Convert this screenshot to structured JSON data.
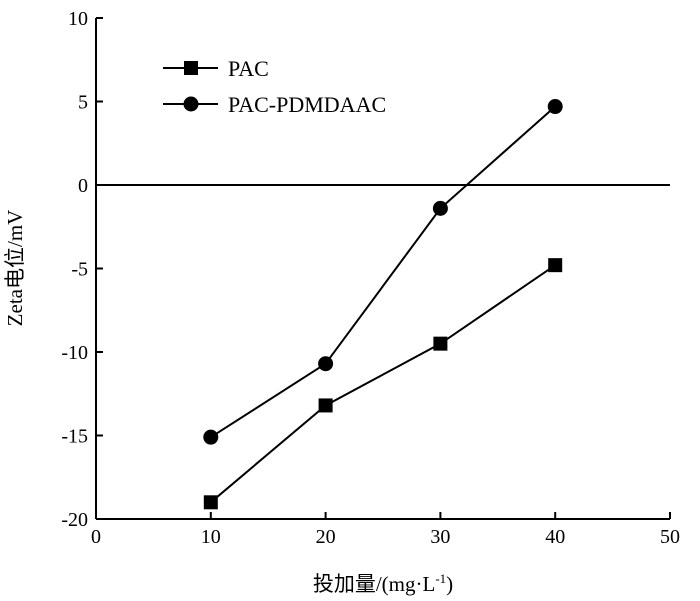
{
  "chart_data": {
    "type": "line",
    "xlabel": "投加量/(mg·L",
    "xlabel_sup": "-1",
    "xlabel_close": ")",
    "ylabel": "Zeta电位/mV",
    "xlim": [
      0,
      50
    ],
    "ylim": [
      -20,
      10
    ],
    "xticks": [
      "0",
      "10",
      "20",
      "30",
      "40",
      "50"
    ],
    "yticks": [
      "-20",
      "-15",
      "-10",
      "-5",
      "0",
      "5",
      "10"
    ],
    "reference_line_y": 0,
    "legend_position": "top-left",
    "series": [
      {
        "name": "PAC",
        "marker": "square",
        "color": "#000000",
        "x": [
          10,
          20,
          30,
          40
        ],
        "y": [
          -19.0,
          -13.2,
          -9.5,
          -4.8
        ]
      },
      {
        "name": "PAC-PDMDAAC",
        "marker": "circle",
        "color": "#000000",
        "x": [
          10,
          20,
          30,
          40
        ],
        "y": [
          -15.1,
          -10.7,
          -1.4,
          4.7
        ]
      }
    ]
  }
}
